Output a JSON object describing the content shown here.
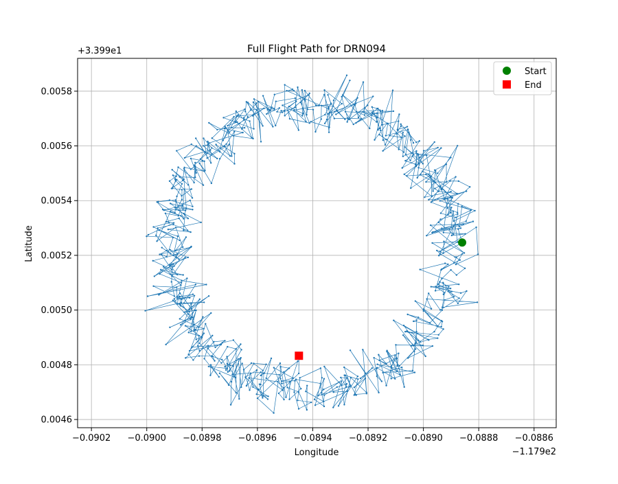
{
  "chart_data": {
    "type": "line",
    "title": "Full Flight Path for DRN094",
    "xlabel": "Longitude",
    "ylabel": "Latitude",
    "x_offset_label": "−1.179e2",
    "y_offset_label": "+3.399e1",
    "x_offset": -117.9,
    "y_offset": 33.99,
    "xlim": [
      -0.09025,
      -0.08852
    ],
    "ylim": [
      0.00457,
      0.00592
    ],
    "xticks": [
      -0.0902,
      -0.09,
      -0.0898,
      -0.0896,
      -0.0894,
      -0.0892,
      -0.089,
      -0.0888,
      -0.0886
    ],
    "xtick_labels": [
      "−0.0902",
      "−0.0900",
      "−0.0898",
      "−0.0896",
      "−0.0894",
      "−0.0892",
      "−0.0890",
      "−0.0888",
      "−0.0886"
    ],
    "yticks": [
      0.0046,
      0.0048,
      0.005,
      0.0052,
      0.0054,
      0.0056,
      0.0058
    ],
    "ytick_labels": [
      "0.0046",
      "0.0048",
      "0.0050",
      "0.0052",
      "0.0054",
      "0.0056",
      "0.0058"
    ],
    "grid": true,
    "legend_position": "top-right",
    "path": {
      "shape": "noisy ring",
      "center": [
        -0.089405,
        0.005225
      ],
      "radius_x": 0.00051,
      "radius_y": 0.00052,
      "noise": 4e-05,
      "points": 800,
      "seed": 94
    },
    "series": [
      {
        "name": "Start",
        "marker": "circle",
        "color": "#008000",
        "x": [
          -0.08886
        ],
        "y": [
          0.005247
        ]
      },
      {
        "name": "End",
        "marker": "square",
        "color": "#ff0000",
        "x": [
          -0.08945
        ],
        "y": [
          0.004833
        ]
      }
    ],
    "line_color": "#1f77b4"
  }
}
